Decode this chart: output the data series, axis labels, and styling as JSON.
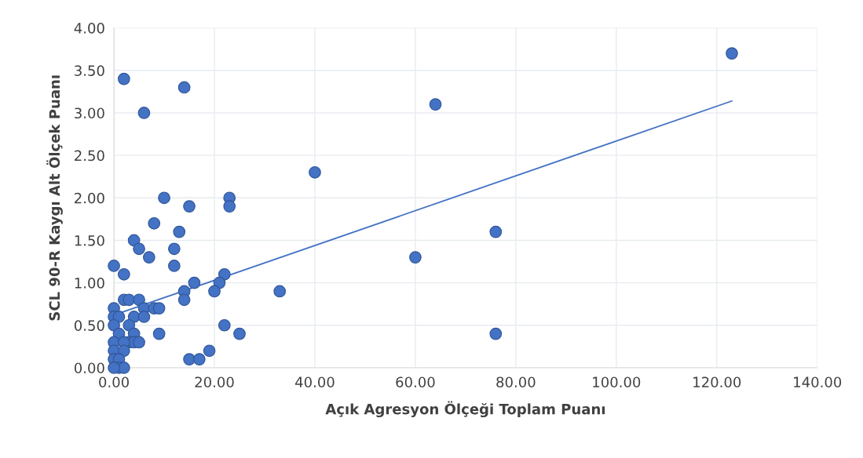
{
  "chart_data": {
    "type": "scatter",
    "xlabel": "Açık Agresyon Ölçeği Toplam Puanı",
    "ylabel": "SCL 90-R Kaygı Alt Ölçek Puanı",
    "xlim": [
      0,
      140
    ],
    "ylim": [
      0,
      4
    ],
    "xticks": [
      {
        "value": 0,
        "label": "0.00"
      },
      {
        "value": 20,
        "label": "20.00"
      },
      {
        "value": 40,
        "label": "40.00"
      },
      {
        "value": 60,
        "label": "60.00"
      },
      {
        "value": 80,
        "label": "80.00"
      },
      {
        "value": 100,
        "label": "100.00"
      },
      {
        "value": 120,
        "label": "120.00"
      },
      {
        "value": 140,
        "label": "140.00"
      }
    ],
    "yticks": [
      {
        "value": 0,
        "label": "0.00"
      },
      {
        "value": 0.5,
        "label": "0.50"
      },
      {
        "value": 1,
        "label": "1.00"
      },
      {
        "value": 1.5,
        "label": "1.50"
      },
      {
        "value": 2,
        "label": "2.00"
      },
      {
        "value": 2.5,
        "label": "2.50"
      },
      {
        "value": 3,
        "label": "3.00"
      },
      {
        "value": 3.5,
        "label": "3.50"
      },
      {
        "value": 4,
        "label": "4.00"
      }
    ],
    "grid": true,
    "series": [
      {
        "color": "#4472c4",
        "marker": "circle",
        "x": [
          2,
          14,
          6,
          123,
          64,
          40,
          10,
          23,
          23,
          15,
          8,
          13,
          4,
          5,
          12,
          7,
          0,
          12,
          2,
          22,
          16,
          21,
          20,
          14,
          33,
          14,
          2,
          3,
          5,
          0,
          6,
          8,
          9,
          0,
          1,
          4,
          6,
          0,
          3,
          22,
          1,
          4,
          9,
          25,
          76,
          76,
          60,
          0,
          3,
          4,
          5,
          2,
          0,
          2,
          0,
          1,
          15,
          17,
          19,
          1,
          2,
          0
        ],
        "values": [
          3.4,
          3.3,
          3.0,
          3.7,
          3.1,
          2.3,
          2.0,
          2.0,
          1.9,
          1.9,
          1.7,
          1.6,
          1.5,
          1.4,
          1.4,
          1.3,
          1.2,
          1.2,
          1.1,
          1.1,
          1.0,
          1.0,
          0.9,
          0.9,
          0.9,
          0.8,
          0.8,
          0.8,
          0.8,
          0.7,
          0.7,
          0.7,
          0.7,
          0.6,
          0.6,
          0.6,
          0.6,
          0.5,
          0.5,
          0.5,
          0.4,
          0.4,
          0.4,
          0.4,
          0.4,
          1.6,
          1.3,
          0.3,
          0.3,
          0.3,
          0.3,
          0.3,
          0.2,
          0.2,
          0.1,
          0.1,
          0.1,
          0.1,
          0.2,
          0,
          0,
          0
        ]
      },
      {
        "type": "line",
        "marker": "none",
        "color": "#4472c4",
        "x": [
          0,
          123
        ],
        "values": [
          0.62,
          3.14
        ]
      }
    ]
  }
}
